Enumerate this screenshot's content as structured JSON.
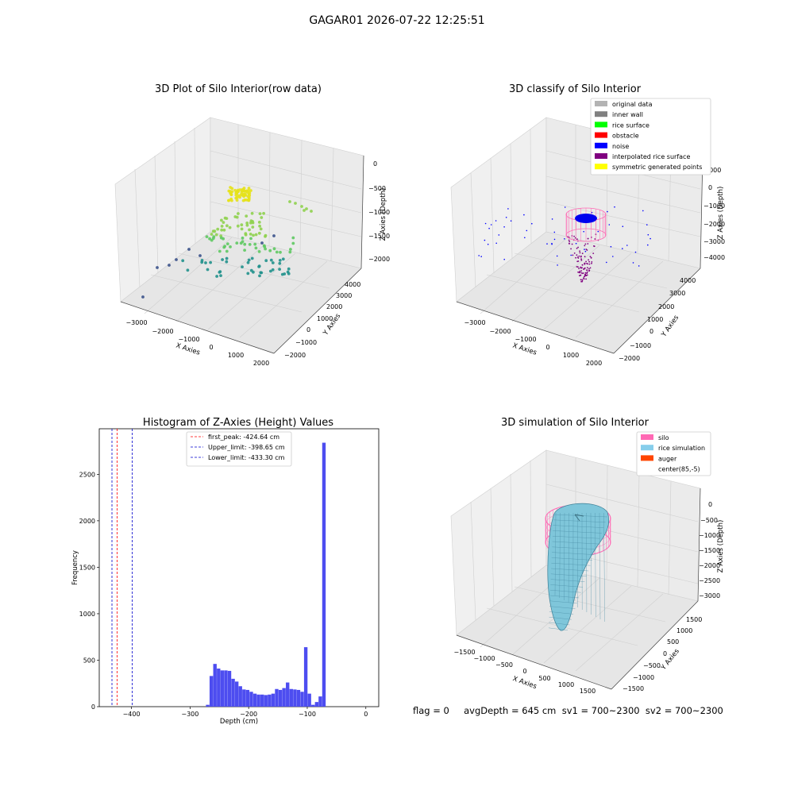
{
  "suptitle": "GAGAR01 2026-07-22 12:25:51",
  "panels": {
    "raw": {
      "title": "3D Plot of Silo Interior(row data)",
      "xlabel": "X Axies",
      "ylabel": "Y Axies",
      "zlabel": "Z Axies (Depth)",
      "xticks": [
        "−3000",
        "−2000",
        "−1000",
        "0",
        "1000",
        "2000"
      ],
      "yticks": [
        "−2000",
        "−1000",
        "0",
        "1000",
        "2000",
        "3000",
        "4000"
      ],
      "zticks": [
        "0",
        "−500",
        "−1000",
        "−1500",
        "−2000"
      ]
    },
    "classify": {
      "title": "3D classify of Silo Interior",
      "xlabel": "X Axies",
      "ylabel": "Y Axies",
      "zlabel": "Z Axies (Depth)",
      "xticks": [
        "−3000",
        "−2000",
        "−1000",
        "0",
        "1000",
        "2000"
      ],
      "yticks": [
        "−2000",
        "−1000",
        "0",
        "1000",
        "2000",
        "3000",
        "4000"
      ],
      "zticks": [
        "1000",
        "0",
        "−1000",
        "−2000",
        "−3000",
        "−4000"
      ],
      "legend": [
        {
          "label": "original data",
          "color": "#b3b3b3"
        },
        {
          "label": "inner wall",
          "color": "#808080"
        },
        {
          "label": "rice surface",
          "color": "#00ff00"
        },
        {
          "label": "obstacle",
          "color": "#ff0000"
        },
        {
          "label": "noise",
          "color": "#0000ff"
        },
        {
          "label": "interpolated rice surface",
          "color": "#800080"
        },
        {
          "label": "symmetric generated points",
          "color": "#ffff00"
        }
      ]
    },
    "simulation": {
      "title": "3D simulation of Silo Interior",
      "xlabel": "X Axies",
      "ylabel": "Y Axies",
      "zlabel": "Z Axies (Depth)",
      "xticks": [
        "−1500",
        "−1000",
        "−500",
        "0",
        "500",
        "1000",
        "1500"
      ],
      "yticks": [
        "−1500",
        "−1000",
        "−500",
        "0",
        "500",
        "1000",
        "1500"
      ],
      "zticks": [
        "0",
        "−500",
        "−1000",
        "−1500",
        "−2000",
        "−2500",
        "−3000"
      ],
      "legend": [
        {
          "label": "silo",
          "color": "#ff69b4"
        },
        {
          "label": "rice simulation",
          "color": "#87ceeb"
        },
        {
          "label": "auger",
          "color": "#ff4500"
        },
        {
          "label": "center(85,-5)",
          "color": ""
        }
      ]
    }
  },
  "chart_data": {
    "type": "bar",
    "title": "Histogram of Z-Axies (Height) Values",
    "xlabel": "Depth (cm)",
    "ylabel": "Frequency",
    "xlim": [
      -455,
      22
    ],
    "ylim": [
      0,
      2990
    ],
    "xticks": [
      -400,
      -300,
      -200,
      -100,
      0
    ],
    "xtick_labels": [
      "−400",
      "−300",
      "−200",
      "−100",
      "0"
    ],
    "yticks": [
      0,
      500,
      1000,
      1500,
      2000,
      2500
    ],
    "yticks_labels": [
      "0",
      "500",
      "1000",
      "1500",
      "2000",
      "2500"
    ],
    "bar_color": "#4d4df0",
    "bin_width": 6.2,
    "bin_starts": [
      -272.9,
      -266.7,
      -260.5,
      -254.3,
      -248.1,
      -241.9,
      -235.7,
      -229.5,
      -223.3,
      -217.1,
      -210.9,
      -204.7,
      -198.5,
      -192.3,
      -186.1,
      -179.9,
      -173.7,
      -167.5,
      -161.3,
      -155.1,
      -148.9,
      -142.7,
      -136.5,
      -130.3,
      -124.1,
      -117.9,
      -111.7,
      -105.5,
      -99.3,
      -93.1,
      -86.9,
      -80.7,
      -74.5,
      -68.3,
      -62.1,
      -55.9,
      -49.7,
      -43.5,
      -37.3,
      -31.1,
      -24.9,
      -18.7,
      -12.5,
      -6.3
    ],
    "values": [
      20,
      330,
      460,
      410,
      390,
      390,
      385,
      300,
      270,
      220,
      185,
      180,
      160,
      140,
      130,
      130,
      125,
      130,
      140,
      190,
      180,
      200,
      260,
      190,
      185,
      180,
      160,
      640,
      140,
      20,
      50,
      110,
      2840,
      0,
      0,
      0,
      0,
      0,
      0,
      0,
      0,
      0,
      0,
      0
    ],
    "vlines": [
      {
        "label": "first_peak: -424.64 cm",
        "x": -424.64,
        "color": "#ff0000"
      },
      {
        "label": "Upper_limit: -398.65 cm",
        "x": -398.65,
        "color": "#0000cc"
      },
      {
        "label": "Lower_limit: -433.30 cm",
        "x": -433.3,
        "color": "#0000cc"
      }
    ],
    "legend_position": "top-center"
  },
  "footer": "flag = 0     avgDepth = 645 cm  sv1 = 700~2300  sv2 = 700~2300"
}
